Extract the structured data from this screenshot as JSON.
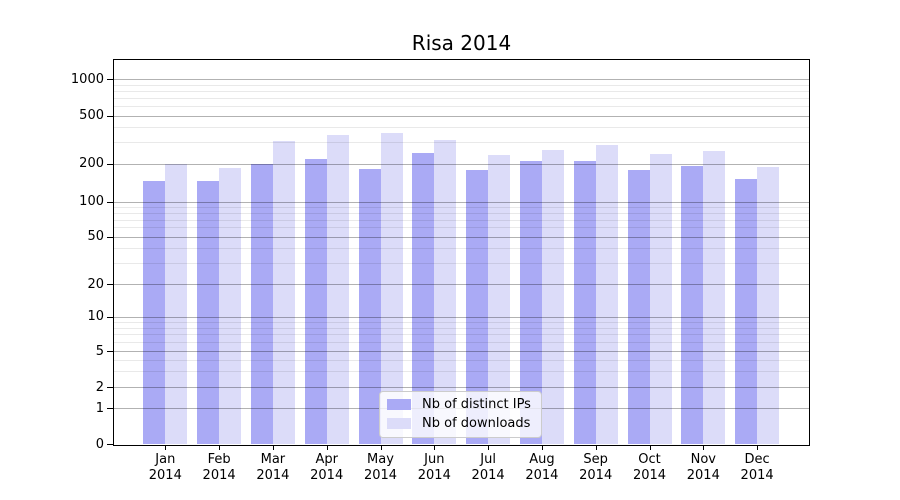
{
  "chart_data": {
    "type": "bar",
    "title": "Risa 2014",
    "categories": [
      "Jan 2014",
      "Feb 2014",
      "Mar 2014",
      "Apr 2014",
      "May 2014",
      "Jun 2014",
      "Jul 2014",
      "Aug 2014",
      "Sep 2014",
      "Oct 2014",
      "Nov 2014",
      "Dec 2014"
    ],
    "x_months": [
      "Jan",
      "Feb",
      "Mar",
      "Apr",
      "May",
      "Jun",
      "Jul",
      "Aug",
      "Sep",
      "Oct",
      "Nov",
      "Dec"
    ],
    "x_year": "2014",
    "series": [
      {
        "name": "Nb of distinct IPs",
        "key": "ips",
        "color": "#aaaaf5",
        "values": [
          145,
          145,
          198,
          220,
          180,
          245,
          178,
          210,
          210,
          178,
          192,
          152
        ]
      },
      {
        "name": "Nb of downloads",
        "key": "downloads",
        "color": "#dcdcf9",
        "values": [
          197,
          185,
          305,
          345,
          355,
          312,
          235,
          260,
          285,
          240,
          255,
          187
        ]
      }
    ],
    "xlabel": "",
    "ylabel": "",
    "yscale": "log with zero baseline",
    "yticks": [
      0,
      1,
      2,
      5,
      10,
      20,
      50,
      100,
      200,
      500,
      1000
    ],
    "ylim": [
      0,
      1400
    ],
    "grid": "horizontal major and minor lines drawn over bars",
    "legend_position": "lower center",
    "colors": {
      "bar_ips": "#aaaaf5",
      "bar_downloads": "#dcdcf9",
      "grid_major": "rgba(0,0,0,0.30)",
      "grid_minor": "rgba(0,0,0,0.085)",
      "axis": "#000000",
      "background": "#ffffff"
    }
  }
}
